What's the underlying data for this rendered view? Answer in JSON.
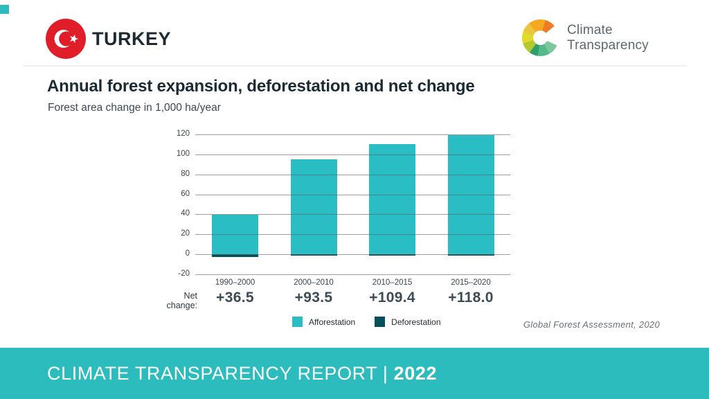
{
  "page": {
    "corner_accent_color": "#2cbcbe"
  },
  "header": {
    "country": "TURKEY",
    "logo_line1": "Climate",
    "logo_line2": "Transparency"
  },
  "chart": {
    "title": "Annual forest expansion, deforestation and net change",
    "subtitle": "Forest area change in 1,000 ha/year",
    "net_change_label": "Net\nchange:",
    "source": "Global Forest Assessment, 2020"
  },
  "chart_data": {
    "type": "bar",
    "title": "Annual forest expansion, deforestation and net change",
    "ylabel": "Forest area change in 1,000 ha/year",
    "categories": [
      "1990–2000",
      "2000–2010",
      "2010–2015",
      "2015–2020"
    ],
    "series": [
      {
        "name": "Afforestation",
        "color": "#2abdc4",
        "values": [
          39.5,
          95.0,
          110.4,
          119.5
        ]
      },
      {
        "name": "Deforestation",
        "color": "#074f5a",
        "values": [
          -3.0,
          -1.5,
          -1.0,
          -1.5
        ]
      }
    ],
    "net_change": [
      "+36.5",
      "+93.5",
      "+109.4",
      "+118.0"
    ],
    "ylim": [
      -20,
      120
    ],
    "yticks": [
      120,
      100,
      80,
      60,
      40,
      20,
      0,
      -20
    ],
    "grid": true,
    "legend_position": "bottom"
  },
  "footer": {
    "text": "CLIMATE TRANSPARENCY REPORT",
    "separator": "|",
    "year": "2022",
    "bg_color": "#2cbcbe"
  }
}
